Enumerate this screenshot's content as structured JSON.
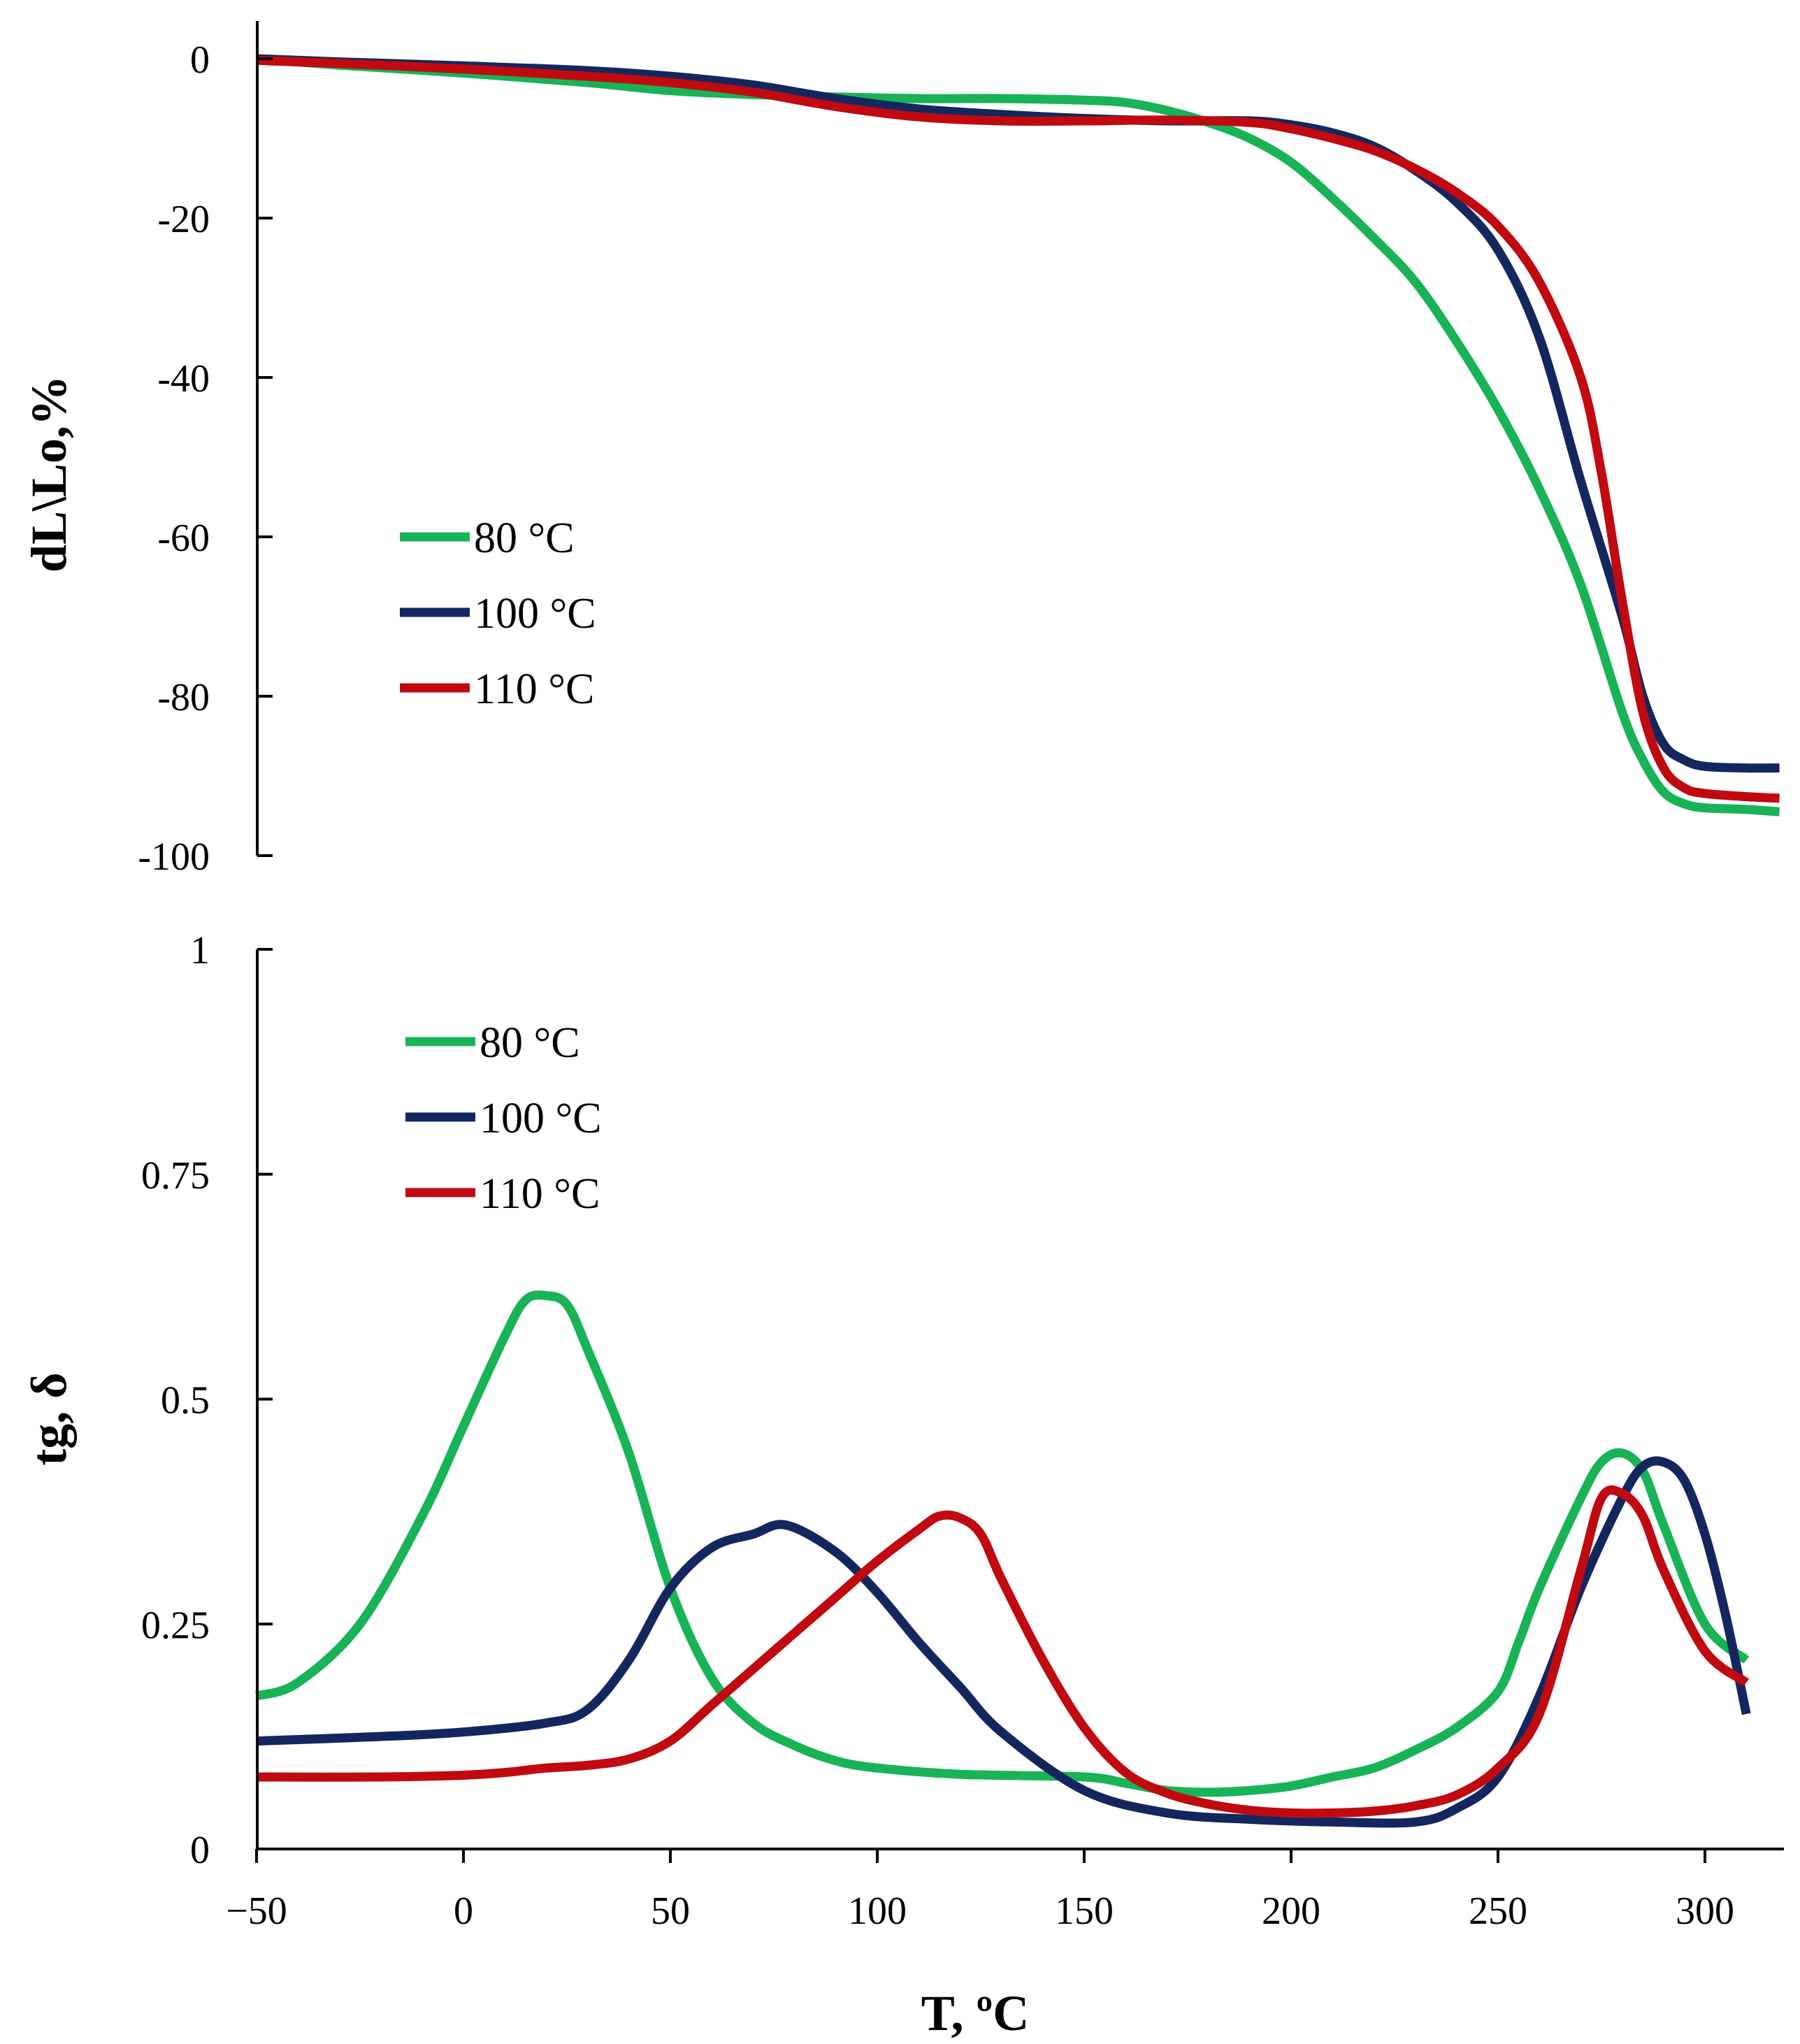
{
  "chart_data": [
    {
      "type": "line",
      "title": "",
      "xlabel": "",
      "ylabel": "dL\\Lo,%",
      "xlim": [
        -50,
        320
      ],
      "ylim": [
        -100,
        5
      ],
      "y_ticks": [
        0,
        -20,
        -40,
        -60,
        -80,
        -100
      ],
      "y_tick_labels": [
        "0",
        "-20",
        "-40",
        "-60",
        "-80",
        "-100"
      ],
      "grid": false,
      "legend_position": "middle-left",
      "series": [
        {
          "name": "80 °C",
          "color": "#18b357",
          "x": [
            -50,
            -30,
            0,
            30,
            50,
            70,
            90,
            110,
            130,
            150,
            160,
            170,
            180,
            190,
            200,
            210,
            220,
            230,
            240,
            250,
            260,
            270,
            280,
            285,
            290,
            295,
            300,
            310,
            318
          ],
          "y": [
            0,
            -0.8,
            -1.8,
            -3.0,
            -4.0,
            -4.5,
            -4.8,
            -5.0,
            -5.0,
            -5.2,
            -5.5,
            -6.5,
            -8.0,
            -10.0,
            -13.0,
            -17.5,
            -22.5,
            -28.0,
            -35.5,
            -44.0,
            -54.0,
            -66.0,
            -82.0,
            -88.0,
            -92.0,
            -93.5,
            -94.0,
            -94.2,
            -94.5
          ]
        },
        {
          "name": "100 °C",
          "color": "#13275e",
          "x": [
            -50,
            -30,
            0,
            30,
            50,
            70,
            90,
            110,
            130,
            150,
            170,
            190,
            200,
            210,
            220,
            230,
            240,
            250,
            260,
            270,
            280,
            285,
            290,
            295,
            300,
            310,
            318
          ],
          "y": [
            0,
            -0.4,
            -0.9,
            -1.5,
            -2.2,
            -3.3,
            -5.0,
            -6.3,
            -7.0,
            -7.5,
            -7.8,
            -7.8,
            -8.3,
            -9.3,
            -11.0,
            -14.0,
            -18.0,
            -24.0,
            -35.0,
            -53.0,
            -70.0,
            -80.0,
            -86.0,
            -88.0,
            -88.8,
            -89.0,
            -89.0
          ]
        },
        {
          "name": "110 °C",
          "color": "#c00a10",
          "x": [
            -50,
            -30,
            0,
            30,
            50,
            70,
            90,
            110,
            130,
            150,
            170,
            190,
            200,
            210,
            220,
            230,
            240,
            250,
            260,
            270,
            275,
            280,
            285,
            290,
            295,
            300,
            310,
            318
          ],
          "y": [
            -0.2,
            -0.6,
            -1.3,
            -2.2,
            -3.0,
            -4.2,
            -6.0,
            -7.3,
            -7.8,
            -7.8,
            -7.7,
            -8.0,
            -8.8,
            -10.0,
            -11.5,
            -13.8,
            -16.8,
            -21.0,
            -28.0,
            -40.0,
            -52.0,
            -68.0,
            -82.0,
            -89.0,
            -91.5,
            -92.2,
            -92.6,
            -92.8
          ]
        }
      ]
    },
    {
      "type": "line",
      "title": "",
      "xlabel": "T, ºC",
      "ylabel": "tg, δ",
      "xlim": [
        -50,
        320
      ],
      "ylim": [
        0,
        1
      ],
      "x_ticks": [
        -50,
        0,
        50,
        100,
        150,
        200,
        250,
        300
      ],
      "x_tick_labels": [
        "−50",
        "0",
        "50",
        "100",
        "150",
        "200",
        "250",
        "300"
      ],
      "y_ticks": [
        0,
        0.25,
        0.5,
        0.75,
        1
      ],
      "y_tick_labels": [
        "0",
        "0.25",
        "0.5",
        "0.75",
        "1"
      ],
      "grid": false,
      "legend_position": "upper-left",
      "series": [
        {
          "name": "80 °C",
          "color": "#18b357",
          "x": [
            -50,
            -40,
            -25,
            -10,
            0,
            10,
            15,
            20,
            25,
            30,
            40,
            50,
            60,
            70,
            80,
            90,
            100,
            120,
            150,
            160,
            170,
            180,
            190,
            200,
            210,
            220,
            230,
            240,
            250,
            255,
            260,
            270,
            275,
            280,
            285,
            290,
            300,
            310
          ],
          "y": [
            0.17,
            0.185,
            0.25,
            0.37,
            0.47,
            0.57,
            0.61,
            0.615,
            0.605,
            0.555,
            0.44,
            0.29,
            0.19,
            0.14,
            0.115,
            0.098,
            0.09,
            0.083,
            0.08,
            0.073,
            0.065,
            0.063,
            0.065,
            0.07,
            0.08,
            0.09,
            0.11,
            0.135,
            0.175,
            0.23,
            0.29,
            0.39,
            0.43,
            0.44,
            0.42,
            0.36,
            0.25,
            0.21
          ]
        },
        {
          "name": "100 °C",
          "color": "#13275e",
          "x": [
            -50,
            -20,
            0,
            20,
            30,
            40,
            50,
            60,
            70,
            78,
            90,
            100,
            110,
            120,
            130,
            150,
            170,
            190,
            210,
            230,
            240,
            250,
            260,
            270,
            280,
            285,
            290,
            295,
            300,
            305,
            310
          ],
          "y": [
            0.12,
            0.125,
            0.13,
            0.14,
            0.155,
            0.21,
            0.29,
            0.335,
            0.35,
            0.36,
            0.33,
            0.285,
            0.23,
            0.18,
            0.13,
            0.065,
            0.04,
            0.033,
            0.03,
            0.03,
            0.045,
            0.08,
            0.17,
            0.29,
            0.39,
            0.425,
            0.43,
            0.41,
            0.35,
            0.26,
            0.15
          ]
        },
        {
          "name": "110 °C",
          "color": "#c00a10",
          "x": [
            -50,
            -20,
            0,
            10,
            20,
            30,
            40,
            50,
            60,
            70,
            80,
            90,
            100,
            110,
            115,
            120,
            125,
            130,
            140,
            150,
            160,
            170,
            180,
            190,
            200,
            210,
            220,
            230,
            240,
            250,
            260,
            270,
            275,
            280,
            285,
            290,
            300,
            310
          ],
          "y": [
            0.08,
            0.08,
            0.082,
            0.085,
            0.09,
            0.093,
            0.1,
            0.12,
            0.16,
            0.2,
            0.24,
            0.28,
            0.32,
            0.355,
            0.37,
            0.368,
            0.35,
            0.3,
            0.21,
            0.135,
            0.085,
            0.062,
            0.05,
            0.043,
            0.04,
            0.04,
            0.042,
            0.048,
            0.06,
            0.09,
            0.15,
            0.31,
            0.39,
            0.395,
            0.37,
            0.31,
            0.22,
            0.185
          ]
        }
      ]
    }
  ]
}
